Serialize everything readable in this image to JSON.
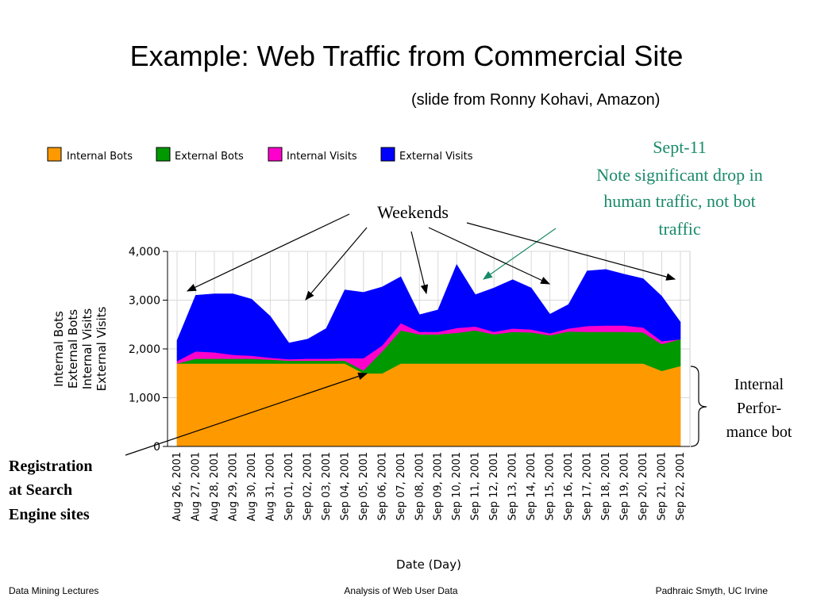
{
  "slide": {
    "title": "Example: Web Traffic from Commercial Site",
    "subtitle": "(slide from Ronny Kohavi, Amazon)"
  },
  "annotations": {
    "sept11_title": "Sept-11",
    "sept11_lines": [
      "Note significant drop in",
      "human traffic, not bot",
      "traffic"
    ],
    "sept11_color": "#1a8a6a",
    "weekends": "Weekends",
    "registration_lines": [
      "Registration",
      "at Search",
      "Engine sites"
    ],
    "internal_perf_lines": [
      "Internal",
      "Perfor-",
      "mance bot"
    ]
  },
  "footer": {
    "left": "Data Mining Lectures",
    "center": "Analysis of Web User Data",
    "right": "Padhraic Smyth, UC Irvine"
  },
  "chart_data": {
    "type": "area",
    "stacked": true,
    "xlabel": "Date (Day)",
    "ylabel_lines": [
      "Internal Bots",
      "External Bots",
      "Internal Visits",
      "External Visits"
    ],
    "ylim": [
      0,
      4000
    ],
    "yticks": [
      0,
      1000,
      2000,
      3000,
      4000
    ],
    "ytick_labels": [
      "0",
      "1,000",
      "2,000",
      "3,000",
      "4,000"
    ],
    "grid": true,
    "legend_position": "top-left",
    "categories": [
      "Aug 26, 2001",
      "Aug 27, 2001",
      "Aug 28, 2001",
      "Aug 29, 2001",
      "Aug 30, 2001",
      "Aug 31, 2001",
      "Sep 01, 2001",
      "Sep 02, 2001",
      "Sep 03, 2001",
      "Sep 04, 2001",
      "Sep 05, 2001",
      "Sep 06, 2001",
      "Sep 07, 2001",
      "Sep 08, 2001",
      "Sep 09, 2001",
      "Sep 10, 2001",
      "Sep 11, 2001",
      "Sep 12, 2001",
      "Sep 13, 2001",
      "Sep 14, 2001",
      "Sep 15, 2001",
      "Sep 16, 2001",
      "Sep 17, 2001",
      "Sep 18, 2001",
      "Sep 19, 2001",
      "Sep 20, 2001",
      "Sep 21, 2001",
      "Sep 22, 2001"
    ],
    "series": [
      {
        "name": "Internal Bots",
        "color": "#ff9900",
        "values": [
          1700,
          1700,
          1700,
          1700,
          1700,
          1700,
          1700,
          1700,
          1700,
          1700,
          1500,
          1500,
          1700,
          1700,
          1700,
          1700,
          1700,
          1700,
          1700,
          1700,
          1700,
          1700,
          1700,
          1700,
          1700,
          1700,
          1550,
          1650
        ]
      },
      {
        "name": "External Bots",
        "color": "#009900",
        "values": [
          0,
          100,
          100,
          100,
          100,
          80,
          60,
          60,
          60,
          60,
          60,
          450,
          680,
          600,
          600,
          630,
          680,
          600,
          650,
          640,
          580,
          660,
          650,
          650,
          650,
          640,
          550,
          550
        ]
      },
      {
        "name": "Internal Visits",
        "color": "#ff00cc",
        "values": [
          50,
          150,
          130,
          80,
          60,
          40,
          30,
          40,
          40,
          50,
          250,
          120,
          150,
          50,
          50,
          100,
          80,
          50,
          70,
          60,
          40,
          60,
          120,
          130,
          130,
          100,
          60,
          0
        ]
      },
      {
        "name": "External Visits",
        "color": "#0000ff",
        "values": [
          420,
          1150,
          1200,
          1250,
          1160,
          850,
          330,
          400,
          620,
          1400,
          1350,
          1200,
          950,
          350,
          450,
          1300,
          650,
          900,
          1000,
          850,
          390,
          490,
          1130,
          1150,
          1050,
          1000,
          920,
          350
        ]
      }
    ]
  }
}
